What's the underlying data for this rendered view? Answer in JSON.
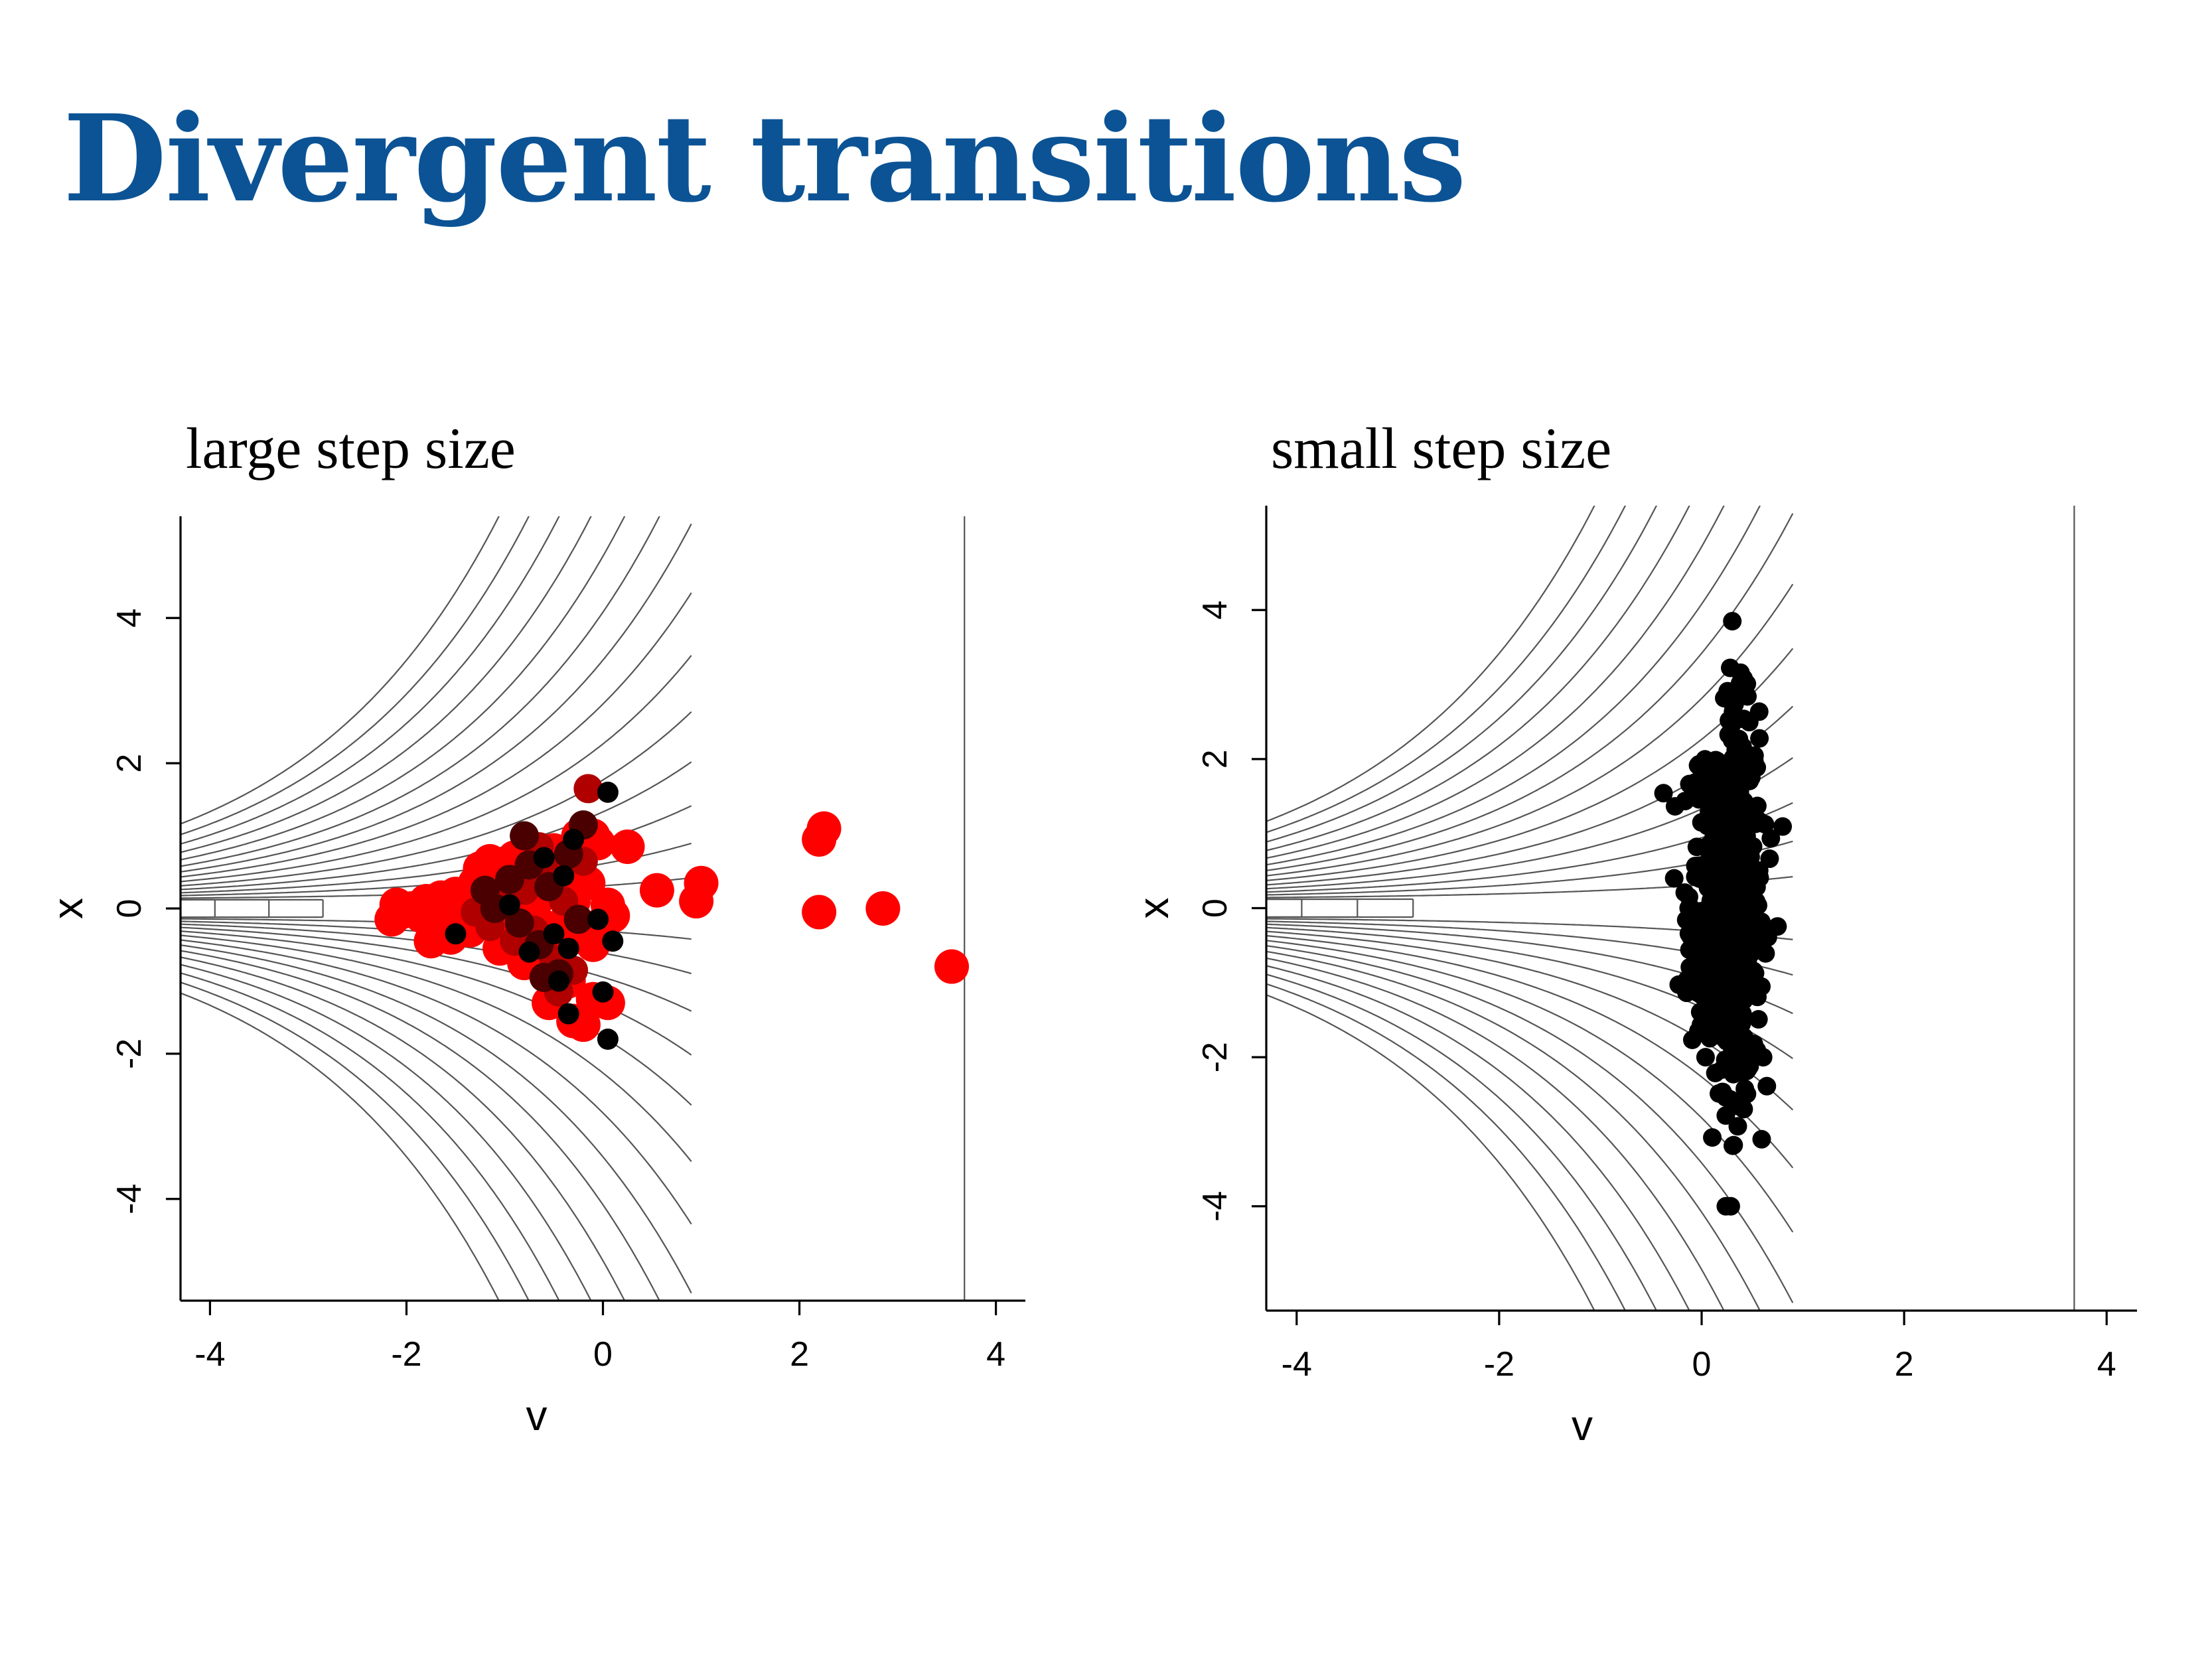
{
  "slide": {
    "title": "Divergent transitions",
    "title_color": "#0b5395"
  },
  "chart_data": [
    {
      "type": "scatter",
      "title": "large step size",
      "xlabel": "v",
      "ylabel": "x",
      "xlim": [
        -4.3,
        4.3
      ],
      "ylim": [
        -5.4,
        5.4
      ],
      "xticks": [
        -4,
        -2,
        0,
        2,
        4
      ],
      "yticks": [
        -4,
        -2,
        0,
        2,
        4
      ],
      "background": "contour lines",
      "colors": {
        "divergent": "#ff0000",
        "mixed": "#b00000",
        "dark": "#4a0000",
        "black": "#000000"
      },
      "points": [
        {
          "v": -2.15,
          "x": -0.15,
          "c": "divergent"
        },
        {
          "v": -2.1,
          "x": 0.05,
          "c": "divergent"
        },
        {
          "v": -2.05,
          "x": -0.05,
          "c": "divergent"
        },
        {
          "v": -1.95,
          "x": 0.0,
          "c": "divergent"
        },
        {
          "v": -1.85,
          "x": -0.1,
          "c": "divergent"
        },
        {
          "v": -1.8,
          "x": 0.1,
          "c": "divergent"
        },
        {
          "v": -1.75,
          "x": -0.45,
          "c": "divergent"
        },
        {
          "v": -1.7,
          "x": -0.25,
          "c": "divergent"
        },
        {
          "v": -1.65,
          "x": 0.15,
          "c": "divergent"
        },
        {
          "v": -1.6,
          "x": -0.05,
          "c": "divergent"
        },
        {
          "v": -1.55,
          "x": -0.4,
          "c": "divergent"
        },
        {
          "v": -1.5,
          "x": 0.2,
          "c": "divergent"
        },
        {
          "v": -1.45,
          "x": -0.15,
          "c": "divergent"
        },
        {
          "v": -1.4,
          "x": 0.0,
          "c": "divergent"
        },
        {
          "v": -1.35,
          "x": -0.3,
          "c": "divergent"
        },
        {
          "v": -1.3,
          "x": 0.35,
          "c": "divergent"
        },
        {
          "v": -1.25,
          "x": 0.55,
          "c": "divergent"
        },
        {
          "v": -1.2,
          "x": -0.2,
          "c": "divergent"
        },
        {
          "v": -1.15,
          "x": 0.65,
          "c": "divergent"
        },
        {
          "v": -1.1,
          "x": 0.1,
          "c": "divergent"
        },
        {
          "v": -1.05,
          "x": -0.55,
          "c": "divergent"
        },
        {
          "v": -1.0,
          "x": 0.3,
          "c": "divergent"
        },
        {
          "v": -0.95,
          "x": -0.35,
          "c": "divergent"
        },
        {
          "v": -0.9,
          "x": 0.7,
          "c": "divergent"
        },
        {
          "v": -0.85,
          "x": 0.0,
          "c": "divergent"
        },
        {
          "v": -0.8,
          "x": -0.75,
          "c": "divergent"
        },
        {
          "v": -0.75,
          "x": 0.45,
          "c": "divergent"
        },
        {
          "v": -0.7,
          "x": -0.1,
          "c": "divergent"
        },
        {
          "v": -0.6,
          "x": 0.2,
          "c": "divergent"
        },
        {
          "v": -0.55,
          "x": -0.6,
          "c": "divergent"
        },
        {
          "v": -0.5,
          "x": 0.8,
          "c": "divergent"
        },
        {
          "v": -0.45,
          "x": -0.25,
          "c": "divergent"
        },
        {
          "v": -0.4,
          "x": 0.5,
          "c": "divergent"
        },
        {
          "v": -0.35,
          "x": -1.0,
          "c": "divergent"
        },
        {
          "v": -0.3,
          "x": 0.1,
          "c": "divergent"
        },
        {
          "v": -0.25,
          "x": 1.0,
          "c": "divergent"
        },
        {
          "v": -0.2,
          "x": -0.4,
          "c": "divergent"
        },
        {
          "v": -0.15,
          "x": 0.35,
          "c": "divergent"
        },
        {
          "v": -0.1,
          "x": -0.5,
          "c": "divergent"
        },
        {
          "v": -0.05,
          "x": 0.9,
          "c": "divergent"
        },
        {
          "v": 0.0,
          "x": -0.2,
          "c": "divergent"
        },
        {
          "v": 0.05,
          "x": 0.05,
          "c": "divergent"
        },
        {
          "v": 0.1,
          "x": -0.1,
          "c": "divergent"
        },
        {
          "v": -0.55,
          "x": -1.3,
          "c": "divergent"
        },
        {
          "v": -0.3,
          "x": -1.55,
          "c": "divergent"
        },
        {
          "v": -0.2,
          "x": -1.6,
          "c": "divergent"
        },
        {
          "v": 0.05,
          "x": -1.3,
          "c": "divergent"
        },
        {
          "v": -0.1,
          "x": -1.25,
          "c": "divergent"
        },
        {
          "v": -0.1,
          "x": 1.0,
          "c": "divergent"
        },
        {
          "v": 0.25,
          "x": 0.85,
          "c": "divergent"
        },
        {
          "v": 0.55,
          "x": 0.25,
          "c": "divergent"
        },
        {
          "v": 0.95,
          "x": 0.1,
          "c": "divergent"
        },
        {
          "v": 1.0,
          "x": 0.35,
          "c": "divergent"
        },
        {
          "v": 2.2,
          "x": 0.95,
          "c": "divergent"
        },
        {
          "v": 2.25,
          "x": 1.1,
          "c": "divergent"
        },
        {
          "v": 2.2,
          "x": -0.05,
          "c": "divergent"
        },
        {
          "v": 2.85,
          "x": 0.0,
          "c": "divergent"
        },
        {
          "v": 3.55,
          "x": -0.8,
          "c": "divergent"
        },
        {
          "v": -1.3,
          "x": -0.05,
          "c": "mixed"
        },
        {
          "v": -1.0,
          "x": 0.15,
          "c": "mixed"
        },
        {
          "v": -0.9,
          "x": -0.45,
          "c": "mixed"
        },
        {
          "v": -0.8,
          "x": 0.25,
          "c": "mixed"
        },
        {
          "v": -0.7,
          "x": -0.3,
          "c": "mixed"
        },
        {
          "v": -0.6,
          "x": 0.55,
          "c": "mixed"
        },
        {
          "v": -0.5,
          "x": -0.7,
          "c": "mixed"
        },
        {
          "v": -0.4,
          "x": 0.1,
          "c": "mixed"
        },
        {
          "v": -0.3,
          "x": -0.85,
          "c": "mixed"
        },
        {
          "v": -0.2,
          "x": 0.65,
          "c": "mixed"
        },
        {
          "v": -0.15,
          "x": 1.65,
          "c": "mixed"
        },
        {
          "v": -1.15,
          "x": -0.25,
          "c": "mixed"
        },
        {
          "v": -0.65,
          "x": 0.85,
          "c": "mixed"
        },
        {
          "v": -0.45,
          "x": -1.15,
          "c": "mixed"
        },
        {
          "v": -1.1,
          "x": 0.0,
          "c": "dark"
        },
        {
          "v": -0.95,
          "x": 0.4,
          "c": "dark"
        },
        {
          "v": -0.85,
          "x": -0.2,
          "c": "dark"
        },
        {
          "v": -0.75,
          "x": 0.6,
          "c": "dark"
        },
        {
          "v": -0.65,
          "x": -0.5,
          "c": "dark"
        },
        {
          "v": -0.55,
          "x": 0.3,
          "c": "dark"
        },
        {
          "v": -0.45,
          "x": -0.9,
          "c": "dark"
        },
        {
          "v": -0.35,
          "x": 0.75,
          "c": "dark"
        },
        {
          "v": -0.25,
          "x": -0.15,
          "c": "dark"
        },
        {
          "v": -0.2,
          "x": 1.15,
          "c": "dark"
        },
        {
          "v": -0.8,
          "x": 1.0,
          "c": "dark"
        },
        {
          "v": -1.2,
          "x": 0.25,
          "c": "dark"
        },
        {
          "v": -0.6,
          "x": -0.95,
          "c": "dark"
        },
        {
          "v": -1.5,
          "x": -0.35,
          "c": "black"
        },
        {
          "v": -0.95,
          "x": 0.05,
          "c": "black"
        },
        {
          "v": -0.75,
          "x": -0.6,
          "c": "black"
        },
        {
          "v": -0.6,
          "x": 0.7,
          "c": "black"
        },
        {
          "v": -0.5,
          "x": -0.35,
          "c": "black"
        },
        {
          "v": -0.4,
          "x": 0.45,
          "c": "black"
        },
        {
          "v": -0.35,
          "x": -0.55,
          "c": "black"
        },
        {
          "v": -0.3,
          "x": 0.95,
          "c": "black"
        },
        {
          "v": -0.45,
          "x": -1.0,
          "c": "black"
        },
        {
          "v": -0.35,
          "x": -1.45,
          "c": "black"
        },
        {
          "v": 0.05,
          "x": 1.6,
          "c": "black"
        },
        {
          "v": 0.05,
          "x": -1.8,
          "c": "black"
        },
        {
          "v": 0.0,
          "x": -1.15,
          "c": "black"
        },
        {
          "v": -0.05,
          "x": -0.15,
          "c": "black"
        },
        {
          "v": 0.1,
          "x": -0.45,
          "c": "black"
        }
      ]
    },
    {
      "type": "scatter",
      "title": "small step size",
      "xlabel": "v",
      "ylabel": "x",
      "xlim": [
        -4.3,
        4.3
      ],
      "ylim": [
        -5.4,
        5.4
      ],
      "xticks": [
        -4,
        -2,
        0,
        2,
        4
      ],
      "yticks": [
        -4,
        -2,
        0,
        2,
        4
      ],
      "background": "contour lines",
      "colors": {
        "black": "#000000"
      },
      "point_cloud": {
        "count": 620,
        "v_center": 0.25,
        "v_spread": 0.18,
        "x_center": 0.1,
        "x_spread": 1.25,
        "v_range": [
          -0.45,
          0.8
        ],
        "x_range": [
          -4.0,
          3.85
        ]
      }
    }
  ]
}
